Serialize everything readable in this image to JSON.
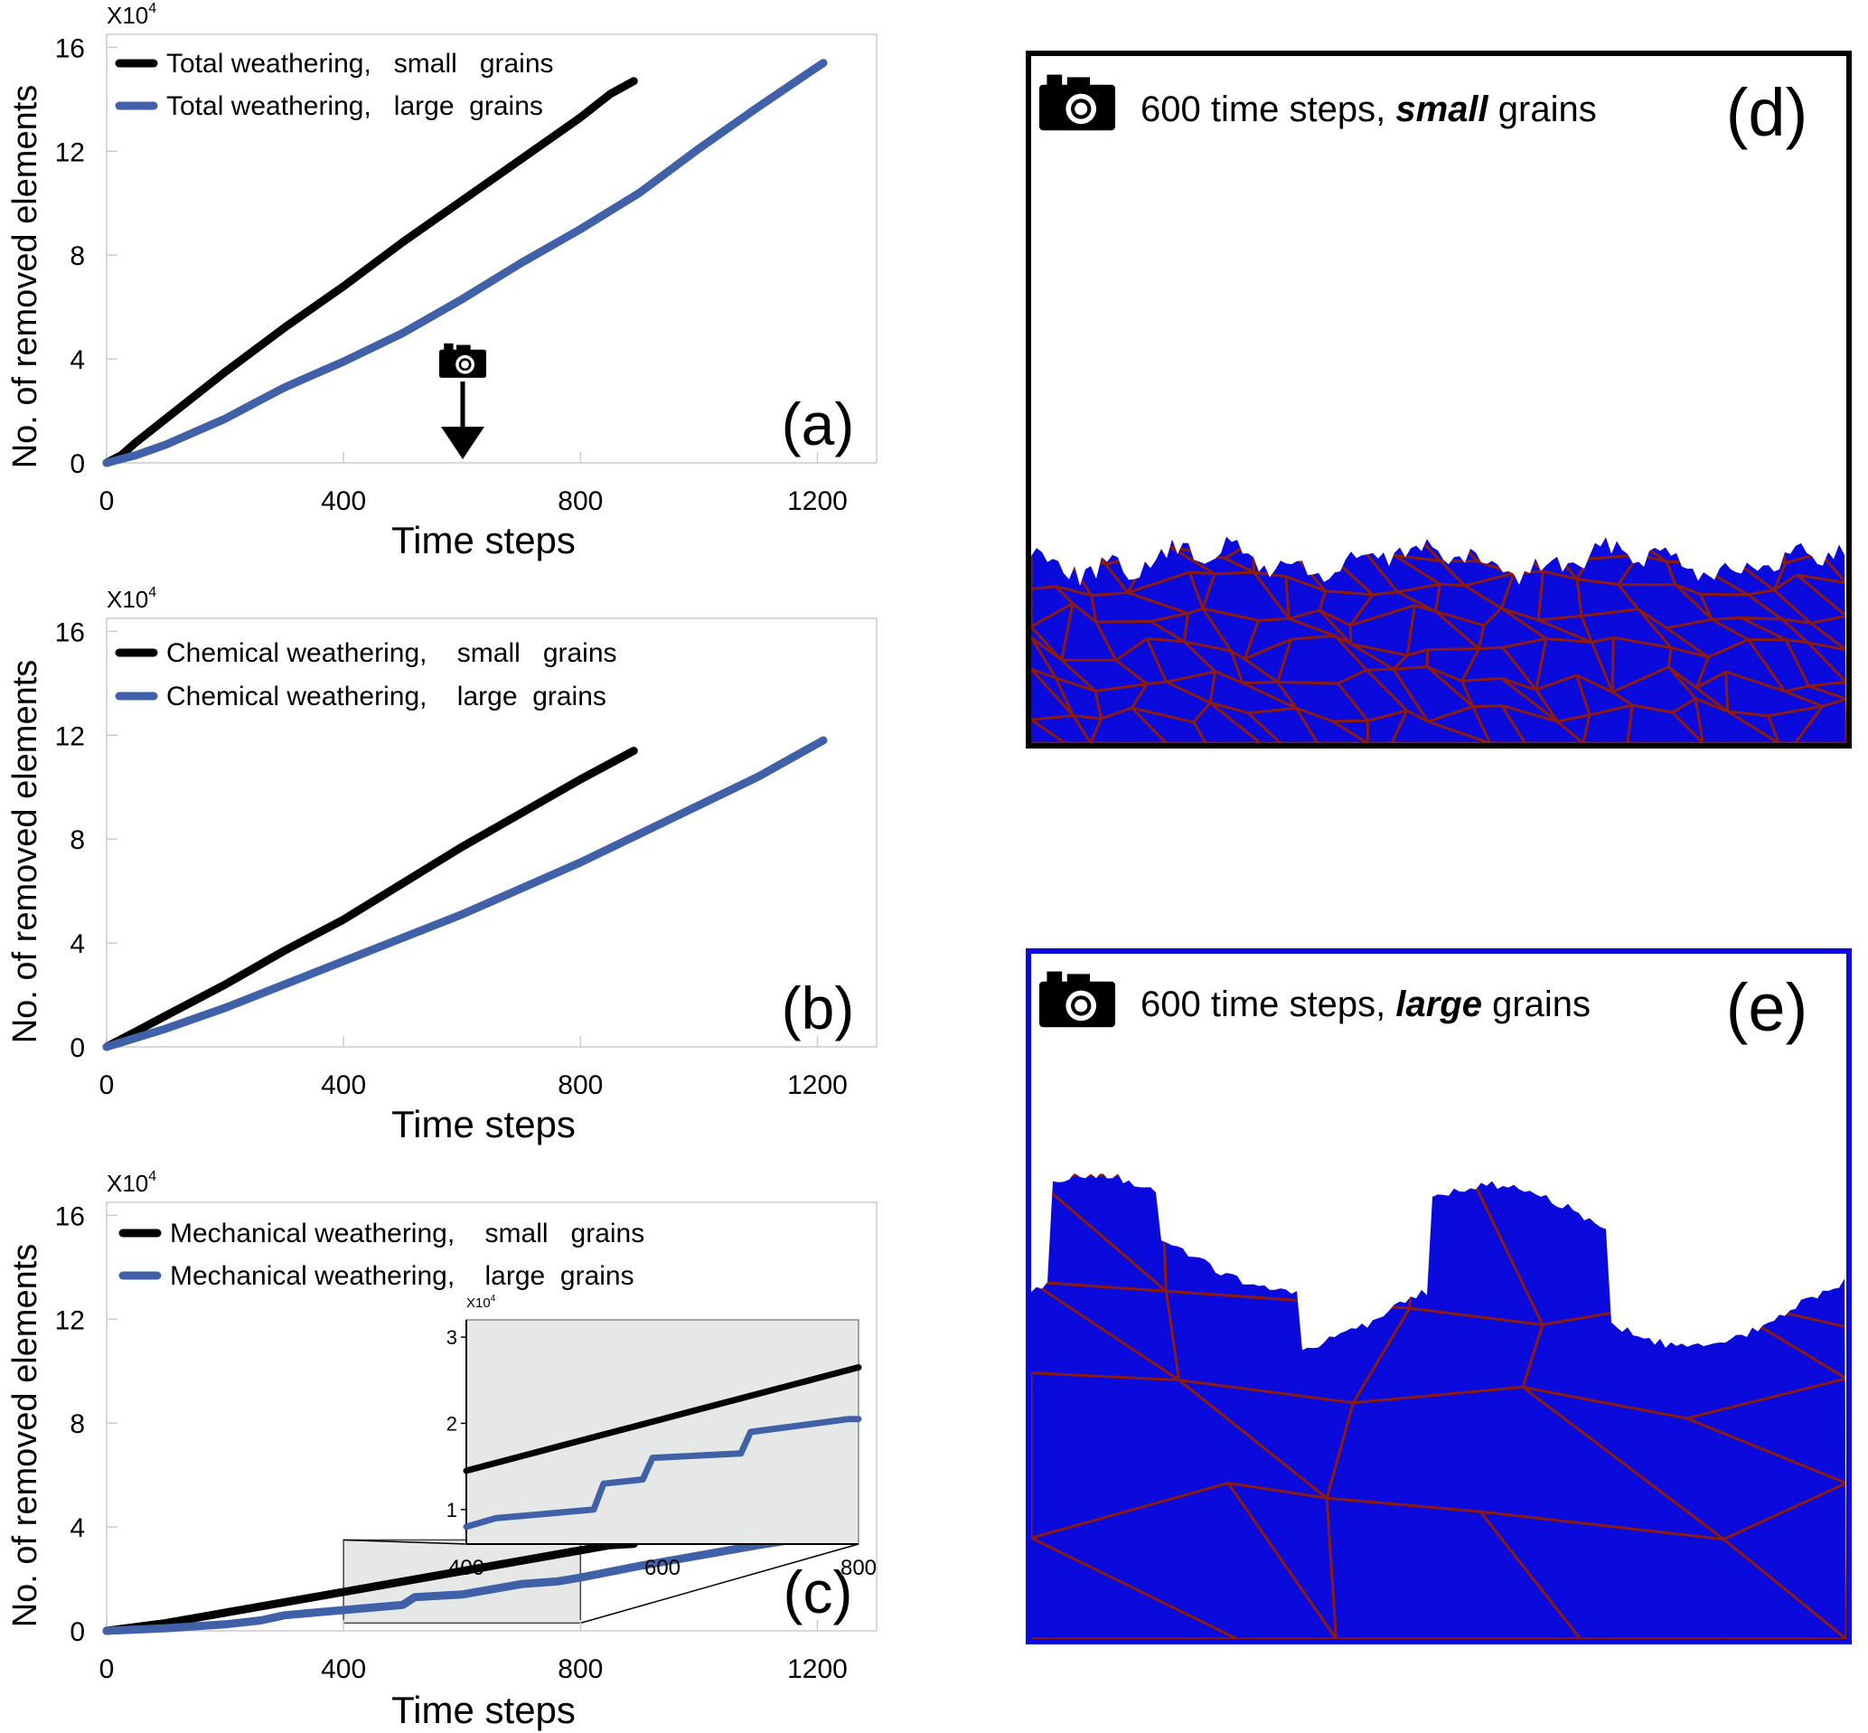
{
  "chart_data": [
    {
      "panel": "(a)",
      "type": "line",
      "multiplier": "X10",
      "multiplier_exp": "4",
      "xlabel": "Time steps",
      "ylabel": "No. of removed elements",
      "xticks": [
        0,
        400,
        800,
        1200
      ],
      "yticks": [
        0,
        4,
        8,
        12,
        16
      ],
      "xlim": [
        0,
        1300
      ],
      "ylim": [
        0,
        16.5
      ],
      "legend_position": "top-left",
      "series": [
        {
          "name": "Total weathering,   small   grains",
          "color": "#000000",
          "x": [
            0,
            25,
            50,
            100,
            150,
            200,
            300,
            400,
            500,
            600,
            700,
            800,
            850,
            890
          ],
          "y": [
            0,
            0.3,
            0.8,
            1.7,
            2.6,
            3.5,
            5.2,
            6.8,
            8.5,
            10.1,
            11.7,
            13.3,
            14.2,
            14.7
          ]
        },
        {
          "name": "Total weathering,   large  grains",
          "color": "#4060A8",
          "x": [
            0,
            50,
            100,
            150,
            200,
            250,
            300,
            350,
            400,
            500,
            600,
            700,
            800,
            900,
            1000,
            1100,
            1210
          ],
          "y": [
            0,
            0.3,
            0.7,
            1.2,
            1.7,
            2.3,
            2.9,
            3.4,
            3.9,
            5.0,
            6.3,
            7.7,
            9.0,
            10.4,
            12.1,
            13.7,
            15.4
          ]
        }
      ],
      "annotation": "(a)"
    },
    {
      "panel": "(b)",
      "type": "line",
      "multiplier": "X10",
      "multiplier_exp": "4",
      "xlabel": "Time steps",
      "ylabel": "No. of removed elements",
      "xticks": [
        0,
        400,
        800,
        1200
      ],
      "yticks": [
        0,
        4,
        8,
        12,
        16
      ],
      "xlim": [
        0,
        1300
      ],
      "ylim": [
        0,
        16.5
      ],
      "legend_position": "top-left",
      "series": [
        {
          "name": "Chemical weathering,    small   grains",
          "color": "#000000",
          "x": [
            0,
            50,
            100,
            200,
            300,
            400,
            500,
            600,
            700,
            800,
            890
          ],
          "y": [
            0,
            0.6,
            1.2,
            2.4,
            3.7,
            4.9,
            6.3,
            7.7,
            9.0,
            10.3,
            11.4
          ]
        },
        {
          "name": "Chemical weathering,    large  grains",
          "color": "#4060A8",
          "x": [
            0,
            100,
            200,
            300,
            400,
            500,
            600,
            700,
            800,
            900,
            1000,
            1100,
            1210
          ],
          "y": [
            0,
            0.7,
            1.5,
            2.4,
            3.3,
            4.2,
            5.1,
            6.1,
            7.1,
            8.2,
            9.3,
            10.4,
            11.8
          ]
        }
      ],
      "annotation": "(b)"
    },
    {
      "panel": "(c)",
      "type": "line",
      "multiplier": "X10",
      "multiplier_exp": "4",
      "xlabel": "Time steps",
      "ylabel": "No. of removed elements",
      "xticks": [
        0,
        400,
        800,
        1200
      ],
      "yticks": [
        0,
        4,
        8,
        12,
        16
      ],
      "xlim": [
        0,
        1300
      ],
      "ylim": [
        0,
        16.5
      ],
      "legend_position": "top-left",
      "series": [
        {
          "name": "Mechanical weathering,    small   grains",
          "color": "#000000",
          "x": [
            0,
            100,
            200,
            300,
            400,
            500,
            600,
            700,
            800,
            850,
            890
          ],
          "y": [
            0,
            0.3,
            0.7,
            1.1,
            1.5,
            1.9,
            2.3,
            2.7,
            3.1,
            3.3,
            3.35
          ]
        },
        {
          "name": "Mechanical weathering,    large  grains",
          "color": "#4060A8",
          "x": [
            0,
            100,
            200,
            260,
            300,
            400,
            500,
            520,
            600,
            700,
            760,
            800,
            900,
            1000,
            1100,
            1210
          ],
          "y": [
            0,
            0.1,
            0.25,
            0.4,
            0.6,
            0.8,
            1.0,
            1.3,
            1.4,
            1.8,
            1.9,
            2.05,
            2.5,
            2.9,
            3.3,
            3.7
          ]
        }
      ],
      "annotation": "(c)",
      "inset": {
        "multiplier": "X10",
        "multiplier_exp": "4",
        "xticks": [
          400,
          600,
          800
        ],
        "yticks": [
          1,
          2,
          3
        ],
        "xlim": [
          400,
          800
        ],
        "ylim": [
          0.6,
          3.2
        ],
        "series": [
          {
            "color": "#000000",
            "x": [
              400,
              500,
              600,
              700,
              800
            ],
            "y": [
              1.45,
              1.75,
              2.05,
              2.35,
              2.65
            ]
          },
          {
            "color": "#4060A8",
            "x": [
              400,
              430,
              480,
              530,
              540,
              580,
              590,
              680,
              690,
              790,
              800
            ],
            "y": [
              0.8,
              0.9,
              0.95,
              1.0,
              1.3,
              1.35,
              1.6,
              1.65,
              1.9,
              2.05,
              2.05
            ]
          }
        ]
      }
    }
  ],
  "panel_d": {
    "caption_prefix": "600 time steps, ",
    "caption_emph": "small",
    "caption_suffix": " grains",
    "label": "(d)",
    "frame_color": "#000000",
    "solid_color": "#0A0ADC",
    "boundary_color": "#8B1A10"
  },
  "panel_e": {
    "caption_prefix": "600 time steps, ",
    "caption_emph": "large",
    "caption_suffix": " grains",
    "label": "(e)",
    "frame_color": "#0A0ADC",
    "solid_color": "#0A0ADC",
    "boundary_color": "#8B1A10"
  },
  "icons": {
    "camera": "camera-icon",
    "arrow": "arrow-down-icon"
  }
}
